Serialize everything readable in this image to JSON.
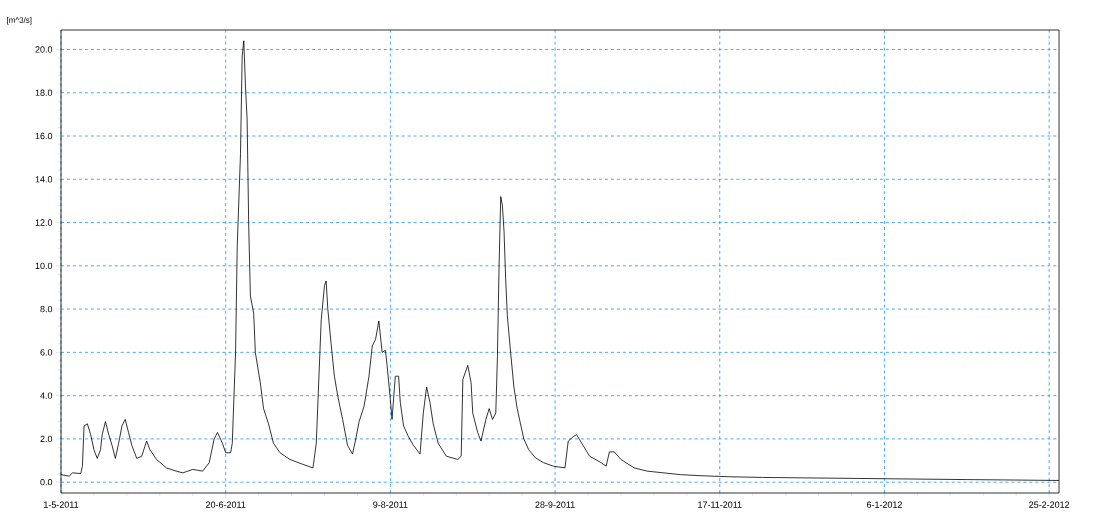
{
  "chart_data": {
    "type": "line",
    "ylabel": "[m^3/s]",
    "color": "#000000",
    "marker": "none",
    "line_style": "solid",
    "grid": true,
    "xlim": [
      "2011-05-01",
      "2012-02-28"
    ],
    "ylim": [
      -0.5,
      20.9
    ],
    "xticks": [
      {
        "value": "2011-05-01",
        "label": "1-5-2011"
      },
      {
        "value": "2011-06-20",
        "label": "20-6-2011"
      },
      {
        "value": "2011-08-09",
        "label": "9-8-2011"
      },
      {
        "value": "2011-09-28",
        "label": "28-9-2011"
      },
      {
        "value": "2011-11-17",
        "label": "17-11-2011"
      },
      {
        "value": "2012-01-06",
        "label": "6-1-2012"
      },
      {
        "value": "2012-02-25",
        "label": "25-2-2012"
      }
    ],
    "yticks": [
      {
        "value": 0,
        "label": "0.0"
      },
      {
        "value": 2,
        "label": "2.0"
      },
      {
        "value": 4,
        "label": "4.0"
      },
      {
        "value": 6,
        "label": "6.0"
      },
      {
        "value": 8,
        "label": "8.0"
      },
      {
        "value": 10,
        "label": "10.0"
      },
      {
        "value": 12,
        "label": "12.0"
      },
      {
        "value": 14,
        "label": "14.0"
      },
      {
        "value": 16,
        "label": "16.0"
      },
      {
        "value": 18,
        "label": "18.0"
      },
      {
        "value": 20,
        "label": "20.0"
      }
    ],
    "x": [
      "2011-05-01",
      "2011-05-03T12:00",
      "2011-05-04T12:00",
      "2011-05-07",
      "2011-05-07T12:00",
      "2011-05-08",
      "2011-05-09",
      "2011-05-10",
      "2011-05-11",
      "2011-05-12",
      "2011-05-13",
      "2011-05-13T12:00",
      "2011-05-14T12:00",
      "2011-05-15T12:00",
      "2011-05-16T12:00",
      "2011-05-17T12:00",
      "2011-05-18T12:00",
      "2011-05-19T12:00",
      "2011-05-20T12:00",
      "2011-05-21T12:00",
      "2011-05-22T12:00",
      "2011-05-24",
      "2011-05-25T12:00",
      "2011-05-27",
      "2011-05-28",
      "2011-05-30",
      "2011-06-02",
      "2011-06-05",
      "2011-06-07",
      "2011-06-10",
      "2011-06-13",
      "2011-06-15",
      "2011-06-16T12:00",
      "2011-06-17T12:00",
      "2011-06-19",
      "2011-06-20",
      "2011-06-21T12:00",
      "2011-06-22",
      "2011-06-23",
      "2011-06-23T12:00",
      "2011-06-24T12:00",
      "2011-06-25",
      "2011-06-25T12:00",
      "2011-06-26",
      "2011-06-26T12:00",
      "2011-06-27",
      "2011-06-27T12:00",
      "2011-06-28T12:00",
      "2011-06-29",
      "2011-06-30T12:00",
      "2011-07-01T12:00",
      "2011-07-03",
      "2011-07-04T12:00",
      "2011-07-06T12:00",
      "2011-07-09T12:00",
      "2011-07-13T12:00",
      "2011-07-16T12:00",
      "2011-07-17T12:00",
      "2011-07-19",
      "2011-07-20",
      "2011-07-20T12:00",
      "2011-07-21",
      "2011-07-22",
      "2011-07-23",
      "2011-07-24",
      "2011-07-25T12:00",
      "2011-07-27",
      "2011-07-28T12:00",
      "2011-07-29T12:00",
      "2011-07-30T12:00",
      "2011-08-01",
      "2011-08-02T12:00",
      "2011-08-03T12:00",
      "2011-08-04T12:00",
      "2011-08-05T12:00",
      "2011-08-06T12:00",
      "2011-08-07T12:00",
      "2011-08-08",
      "2011-08-09",
      "2011-08-09T12:00",
      "2011-08-10T12:00",
      "2011-08-11T12:00",
      "2011-08-12",
      "2011-08-13",
      "2011-08-14T12:00",
      "2011-08-16",
      "2011-08-18",
      "2011-08-19",
      "2011-08-20",
      "2011-08-21",
      "2011-08-22",
      "2011-08-23T12:00",
      "2011-08-26",
      "2011-08-29T12:00",
      "2011-08-30T12:00",
      "2011-08-31",
      "2011-09-01T12:00",
      "2011-09-02T12:00",
      "2011-09-03",
      "2011-09-04T12:00",
      "2011-09-05T12:00",
      "2011-09-07",
      "2011-09-08",
      "2011-09-09",
      "2011-09-10",
      "2011-09-10T12:00",
      "2011-09-11",
      "2011-09-11T12:00",
      "2011-09-12",
      "2011-09-12T12:00",
      "2011-09-13",
      "2011-09-13T12:00",
      "2011-09-14T12:00",
      "2011-09-15T12:00",
      "2011-09-16T12:00",
      "2011-09-17T12:00",
      "2011-09-18T12:00",
      "2011-09-20",
      "2011-09-22",
      "2011-09-24T12:00",
      "2011-09-27T12:00",
      "2011-10-01",
      "2011-10-02",
      "2011-10-03T12:00",
      "2011-10-04T12:00",
      "2011-10-06T12:00",
      "2011-10-08T12:00",
      "2011-10-12",
      "2011-10-13T12:00",
      "2011-10-14T12:00",
      "2011-10-16",
      "2011-10-18",
      "2011-10-22",
      "2011-10-26",
      "2011-10-31",
      "2011-11-05",
      "2011-11-11",
      "2011-11-20",
      "2011-11-30",
      "2011-12-12",
      "2012-01-06",
      "2012-01-31",
      "2012-02-28"
    ],
    "values": [
      0.35,
      0.28,
      0.43,
      0.4,
      0.74,
      2.6,
      2.7,
      2.2,
      1.5,
      1.1,
      1.5,
      2.2,
      2.8,
      2.2,
      1.7,
      1.1,
      1.8,
      2.6,
      2.9,
      2.3,
      1.7,
      1.1,
      1.2,
      1.9,
      1.5,
      1.05,
      0.66,
      0.51,
      0.43,
      0.59,
      0.51,
      0.9,
      2.0,
      2.3,
      1.8,
      1.36,
      1.36,
      1.8,
      6.0,
      10.9,
      15.2,
      19.7,
      20.4,
      18.3,
      16.8,
      11.8,
      8.6,
      7.8,
      6.0,
      4.6,
      3.4,
      2.7,
      1.8,
      1.36,
      1.05,
      0.82,
      0.66,
      1.8,
      7.5,
      9.1,
      9.3,
      8.0,
      6.4,
      4.9,
      4.0,
      2.9,
      1.7,
      1.3,
      2.0,
      2.8,
      3.5,
      4.9,
      6.3,
      6.6,
      7.45,
      6.0,
      6.1,
      5.4,
      3.8,
      2.9,
      4.9,
      4.9,
      3.7,
      2.6,
      2.1,
      1.7,
      1.3,
      3.2,
      4.4,
      3.7,
      2.7,
      1.8,
      1.2,
      1.05,
      1.2,
      4.75,
      5.4,
      4.6,
      3.2,
      2.3,
      1.9,
      2.9,
      3.4,
      2.9,
      3.2,
      5.8,
      10.0,
      13.2,
      12.8,
      11.6,
      9.4,
      7.7,
      6.0,
      4.4,
      3.4,
      2.7,
      2.0,
      1.5,
      1.13,
      0.9,
      0.74,
      0.66,
      1.9,
      2.1,
      2.2,
      1.7,
      1.2,
      0.9,
      0.74,
      1.4,
      1.4,
      1.05,
      0.66,
      0.51,
      0.43,
      0.35,
      0.3,
      0.25,
      0.22,
      0.2,
      0.16,
      0.12,
      0.08
    ]
  }
}
